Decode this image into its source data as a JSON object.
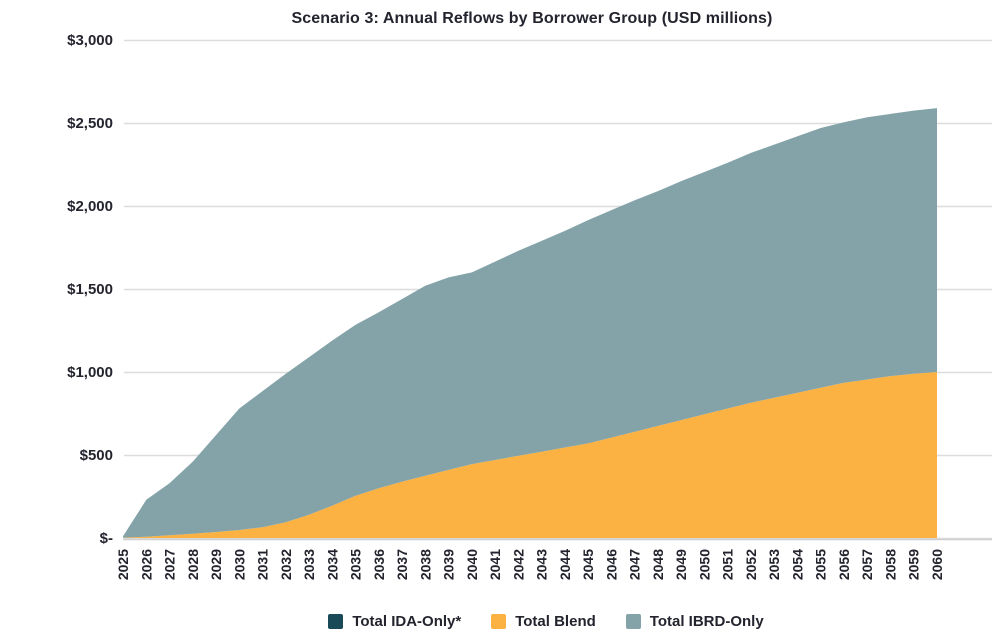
{
  "title": "Scenario 3: Annual Reflows by Borrower Group (USD millions)",
  "chart_data": {
    "type": "area",
    "stacked": true,
    "title": "Scenario 3: Annual Reflows by Borrower Group (USD millions)",
    "x": [
      2025,
      2026,
      2027,
      2028,
      2029,
      2030,
      2031,
      2032,
      2033,
      2034,
      2035,
      2036,
      2037,
      2038,
      2039,
      2040,
      2041,
      2042,
      2043,
      2044,
      2045,
      2046,
      2047,
      2048,
      2049,
      2050,
      2051,
      2052,
      2053,
      2054,
      2055,
      2056,
      2057,
      2058,
      2059,
      2060
    ],
    "ylim": [
      0,
      3000
    ],
    "yticks": {
      "values": [
        0,
        500,
        1000,
        1500,
        2000,
        2500,
        3000
      ],
      "labels": [
        "$-",
        "$500",
        "$1,000",
        "$1,500",
        "$2,000",
        "$2,500",
        "$3,000"
      ]
    },
    "grid": "horizontal",
    "gridline_color": "#dcdcdc",
    "axisline_color": "#cfcfcf",
    "text_color": "#23242e",
    "legend_position": "bottom",
    "series": [
      {
        "name": "Total IDA-Only*",
        "color": "#1a4a57",
        "values": [
          0,
          0,
          0,
          0,
          0,
          0,
          0,
          0,
          0,
          0,
          0,
          0,
          0,
          0,
          0,
          0,
          0,
          0,
          0,
          0,
          0,
          0,
          0,
          0,
          0,
          0,
          0,
          0,
          0,
          0,
          0,
          0,
          0,
          0,
          0,
          0
        ]
      },
      {
        "name": "Total Blend",
        "color": "#fbb243",
        "values": [
          2,
          8,
          16,
          26,
          36,
          48,
          65,
          95,
          140,
          195,
          255,
          300,
          340,
          375,
          410,
          445,
          470,
          495,
          520,
          545,
          570,
          605,
          640,
          675,
          710,
          745,
          780,
          815,
          845,
          875,
          905,
          935,
          955,
          975,
          990,
          1000
        ]
      },
      {
        "name": "Total IBRD-Only",
        "color": "#84a3a9",
        "values": [
          8,
          222,
          314,
          434,
          584,
          732,
          820,
          895,
          950,
          995,
          1030,
          1060,
          1100,
          1145,
          1160,
          1155,
          1195,
          1235,
          1270,
          1305,
          1345,
          1370,
          1395,
          1415,
          1440,
          1460,
          1480,
          1505,
          1525,
          1545,
          1565,
          1570,
          1580,
          1580,
          1585,
          1590
        ]
      }
    ]
  }
}
